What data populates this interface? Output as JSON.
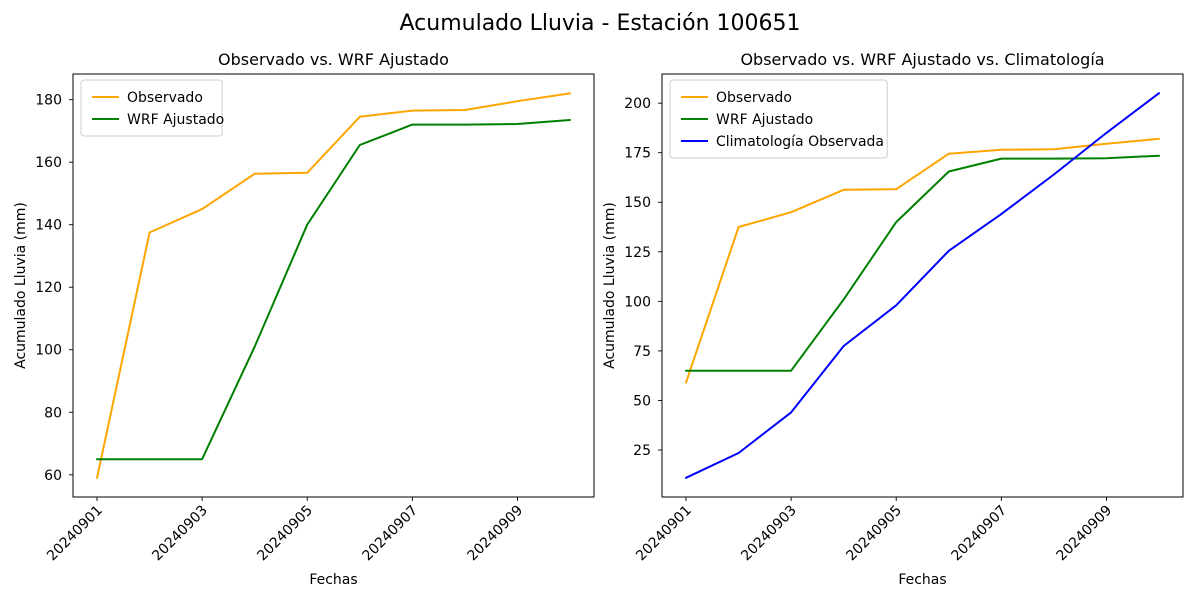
{
  "figure": {
    "title": "Acumulado Lluvia - Estación 100651",
    "background": "#ffffff"
  },
  "chart_data": [
    {
      "type": "line",
      "title": "Observado vs. WRF Ajustado",
      "xlabel": "Fechas",
      "ylabel": "Acumulado Lluvia (mm)",
      "x": [
        "20240901",
        "20240902",
        "20240903",
        "20240904",
        "20240905",
        "20240906",
        "20240907",
        "20240908",
        "20240909",
        "20240910"
      ],
      "xtick_labels": [
        "20240901",
        "20240903",
        "20240905",
        "20240907",
        "20240909"
      ],
      "xtick_indices": [
        0,
        2,
        4,
        6,
        8
      ],
      "xtick_rotation": 45,
      "yticks": [
        60,
        80,
        100,
        120,
        140,
        160,
        180
      ],
      "ylim": [
        52.9,
        188.2
      ],
      "grid": false,
      "legend_position": "upper left",
      "legend": [
        "Observado",
        "WRF Ajustado"
      ],
      "series": [
        {
          "name": "Observado",
          "color": "#FFA500",
          "values": [
            59,
            137.5,
            145,
            156.3,
            156.6,
            174.5,
            176.5,
            176.7,
            179.5,
            182
          ]
        },
        {
          "name": "WRF Ajustado",
          "color": "#008000",
          "values": [
            65,
            65,
            65,
            101,
            140,
            165.5,
            172,
            172,
            172.2,
            173.5
          ]
        }
      ]
    },
    {
      "type": "line",
      "title": "Observado vs. WRF Ajustado vs. Climatología",
      "xlabel": "Fechas",
      "ylabel": "Acumulado Lluvia (mm)",
      "x": [
        "20240901",
        "20240902",
        "20240903",
        "20240904",
        "20240905",
        "20240906",
        "20240907",
        "20240908",
        "20240909",
        "20240910"
      ],
      "xtick_labels": [
        "20240901",
        "20240903",
        "20240905",
        "20240907",
        "20240909"
      ],
      "xtick_indices": [
        0,
        2,
        4,
        6,
        8
      ],
      "xtick_rotation": 45,
      "yticks": [
        25,
        50,
        75,
        100,
        125,
        150,
        175,
        200
      ],
      "ylim": [
        1.3,
        214.7
      ],
      "grid": false,
      "legend_position": "upper left",
      "legend": [
        "Observado",
        "WRF Ajustado",
        "Climatología Observada"
      ],
      "series": [
        {
          "name": "Observado",
          "color": "#FFA500",
          "values": [
            59,
            137.5,
            145,
            156.3,
            156.6,
            174.5,
            176.5,
            176.7,
            179.5,
            182
          ]
        },
        {
          "name": "WRF Ajustado",
          "color": "#008000",
          "values": [
            65,
            65,
            65,
            101,
            140,
            165.5,
            172,
            172,
            172.2,
            173.5
          ]
        },
        {
          "name": "Climatología Observada",
          "color": "#0000FF",
          "values": [
            11,
            23.5,
            44,
            77.5,
            98,
            125.5,
            144,
            164,
            185,
            205
          ]
        }
      ]
    }
  ]
}
